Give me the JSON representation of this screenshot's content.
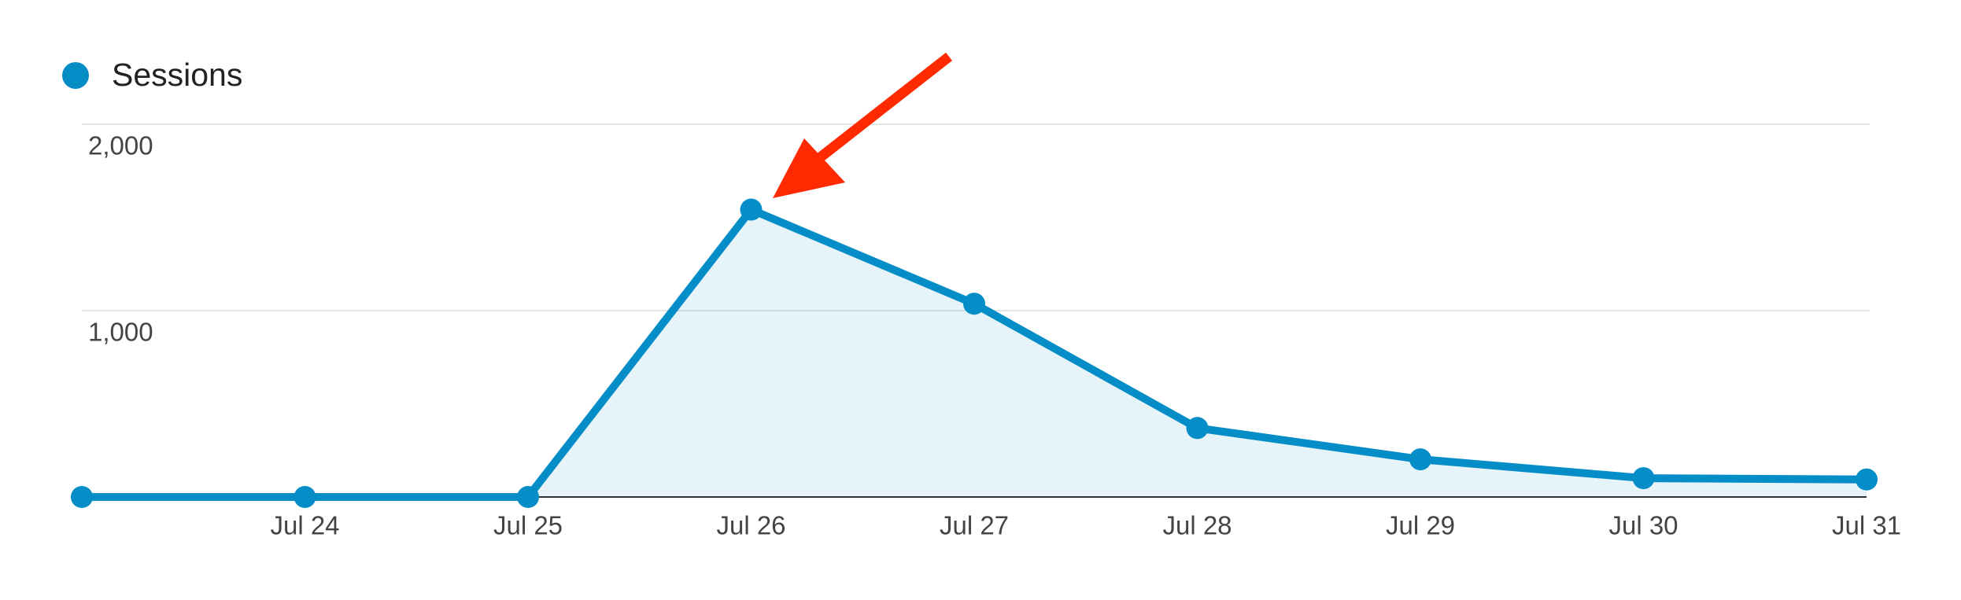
{
  "chart_data": {
    "type": "line",
    "categories": [
      null,
      "Jul 24",
      "Jul 25",
      "Jul 26",
      "Jul 27",
      "Jul 28",
      "Jul 29",
      "Jul 30",
      "Jul 31"
    ],
    "series": [
      {
        "name": "Sessions",
        "color": "#058dc7",
        "values": [
          0,
          0,
          0,
          1542,
          1037,
          370,
          202,
          101,
          94
        ]
      }
    ],
    "ylim": [
      0,
      2000
    ],
    "yticks": [
      {
        "value": 1000,
        "label": "1,000"
      },
      {
        "value": 2000,
        "label": "2,000"
      }
    ],
    "grid": true
  }
}
